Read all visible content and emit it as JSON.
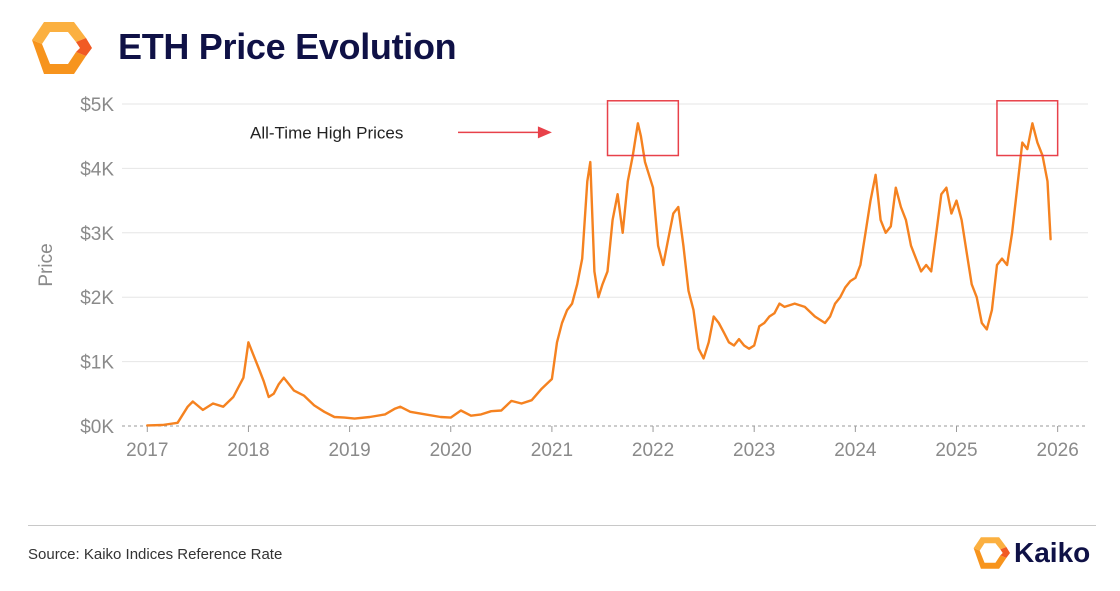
{
  "header": {
    "title": "ETH Price Evolution",
    "logo_icon": "kaiko-hexagon-logo-icon"
  },
  "footer": {
    "source": "Source: Kaiko Indices Reference Rate",
    "brand": "Kaiko",
    "brand_icon": "kaiko-hexagon-logo-icon"
  },
  "colors": {
    "line": "#f58220",
    "annotation": "#e8414a",
    "title": "#0f1146",
    "axis_text": "#8a8a8a",
    "logo_orange": "#f7941d",
    "logo_amber": "#fbb040"
  },
  "chart_data": {
    "type": "line",
    "title": "ETH Price Evolution",
    "ylabel": "Price",
    "xlabel": "",
    "ylim": [
      0,
      5000
    ],
    "xlim": [
      2016.75,
      2026.3
    ],
    "y_ticks": [
      0,
      1000,
      2000,
      3000,
      4000,
      5000
    ],
    "y_tick_labels": [
      "$0K",
      "$1K",
      "$2K",
      "$3K",
      "$4K",
      "$5K"
    ],
    "x_ticks": [
      2017,
      2018,
      2019,
      2020,
      2021,
      2022,
      2023,
      2024,
      2025,
      2026
    ],
    "x_tick_labels": [
      "2017",
      "2018",
      "2019",
      "2020",
      "2021",
      "2022",
      "2023",
      "2024",
      "2025",
      "2026"
    ],
    "grid": true,
    "series": [
      {
        "name": "ETH Price",
        "x": [
          2017.0,
          2017.15,
          2017.3,
          2017.4,
          2017.45,
          2017.55,
          2017.65,
          2017.75,
          2017.85,
          2017.95,
          2018.0,
          2018.05,
          2018.1,
          2018.15,
          2018.2,
          2018.25,
          2018.3,
          2018.35,
          2018.45,
          2018.55,
          2018.65,
          2018.75,
          2018.85,
          2018.95,
          2019.05,
          2019.2,
          2019.35,
          2019.45,
          2019.5,
          2019.6,
          2019.75,
          2019.9,
          2020.0,
          2020.1,
          2020.2,
          2020.3,
          2020.4,
          2020.5,
          2020.6,
          2020.7,
          2020.8,
          2020.9,
          2021.0,
          2021.05,
          2021.1,
          2021.15,
          2021.2,
          2021.25,
          2021.3,
          2021.35,
          2021.38,
          2021.42,
          2021.46,
          2021.5,
          2021.55,
          2021.6,
          2021.65,
          2021.7,
          2021.75,
          2021.8,
          2021.85,
          2021.88,
          2021.92,
          2021.96,
          2022.0,
          2022.05,
          2022.1,
          2022.15,
          2022.2,
          2022.25,
          2022.3,
          2022.35,
          2022.4,
          2022.45,
          2022.5,
          2022.55,
          2022.6,
          2022.65,
          2022.7,
          2022.75,
          2022.8,
          2022.85,
          2022.9,
          2022.95,
          2023.0,
          2023.05,
          2023.1,
          2023.15,
          2023.2,
          2023.25,
          2023.3,
          2023.4,
          2023.5,
          2023.6,
          2023.7,
          2023.75,
          2023.8,
          2023.85,
          2023.9,
          2023.95,
          2024.0,
          2024.05,
          2024.1,
          2024.15,
          2024.2,
          2024.25,
          2024.3,
          2024.35,
          2024.4,
          2024.45,
          2024.5,
          2024.55,
          2024.6,
          2024.65,
          2024.7,
          2024.75,
          2024.8,
          2024.85,
          2024.9,
          2024.95,
          2025.0,
          2025.05,
          2025.1,
          2025.15,
          2025.2,
          2025.25,
          2025.3,
          2025.35,
          2025.4,
          2025.45,
          2025.5,
          2025.55,
          2025.6,
          2025.65,
          2025.7,
          2025.75,
          2025.8,
          2025.85,
          2025.9,
          2025.93
        ],
        "values": [
          10,
          15,
          50,
          300,
          380,
          250,
          350,
          300,
          450,
          750,
          1300,
          1100,
          900,
          700,
          450,
          500,
          650,
          750,
          550,
          470,
          320,
          220,
          140,
          130,
          115,
          140,
          180,
          270,
          300,
          220,
          180,
          140,
          130,
          240,
          160,
          180,
          230,
          240,
          390,
          350,
          400,
          580,
          730,
          1300,
          1600,
          1800,
          1900,
          2200,
          2600,
          3800,
          4100,
          2400,
          2000,
          2200,
          2400,
          3200,
          3600,
          3000,
          3800,
          4200,
          4700,
          4500,
          4100,
          3900,
          3700,
          2800,
          2500,
          2900,
          3300,
          3400,
          2800,
          2100,
          1800,
          1200,
          1050,
          1300,
          1700,
          1600,
          1450,
          1300,
          1250,
          1350,
          1250,
          1200,
          1250,
          1550,
          1600,
          1700,
          1750,
          1900,
          1850,
          1900,
          1850,
          1700,
          1600,
          1700,
          1900,
          2000,
          2150,
          2250,
          2300,
          2500,
          3000,
          3500,
          3900,
          3200,
          3000,
          3100,
          3700,
          3400,
          3200,
          2800,
          2600,
          2400,
          2500,
          2400,
          3000,
          3600,
          3700,
          3300,
          3500,
          3200,
          2700,
          2200,
          2000,
          1600,
          1500,
          1800,
          2500,
          2600,
          2500,
          3000,
          3700,
          4400,
          4300,
          4700,
          4400,
          4200,
          3800,
          2900
        ]
      }
    ],
    "annotations": [
      {
        "type": "text-arrow",
        "text": "All-Time High Prices",
        "pointer_date": 2021.0,
        "pointer_price": 4560
      },
      {
        "type": "box",
        "label": "ath-2021",
        "x_range": [
          2021.55,
          2022.25
        ],
        "y_range": [
          4200,
          5050
        ]
      },
      {
        "type": "box",
        "label": "ath-2025",
        "x_range": [
          2025.4,
          2026.0
        ],
        "y_range": [
          4200,
          5050
        ]
      }
    ]
  }
}
